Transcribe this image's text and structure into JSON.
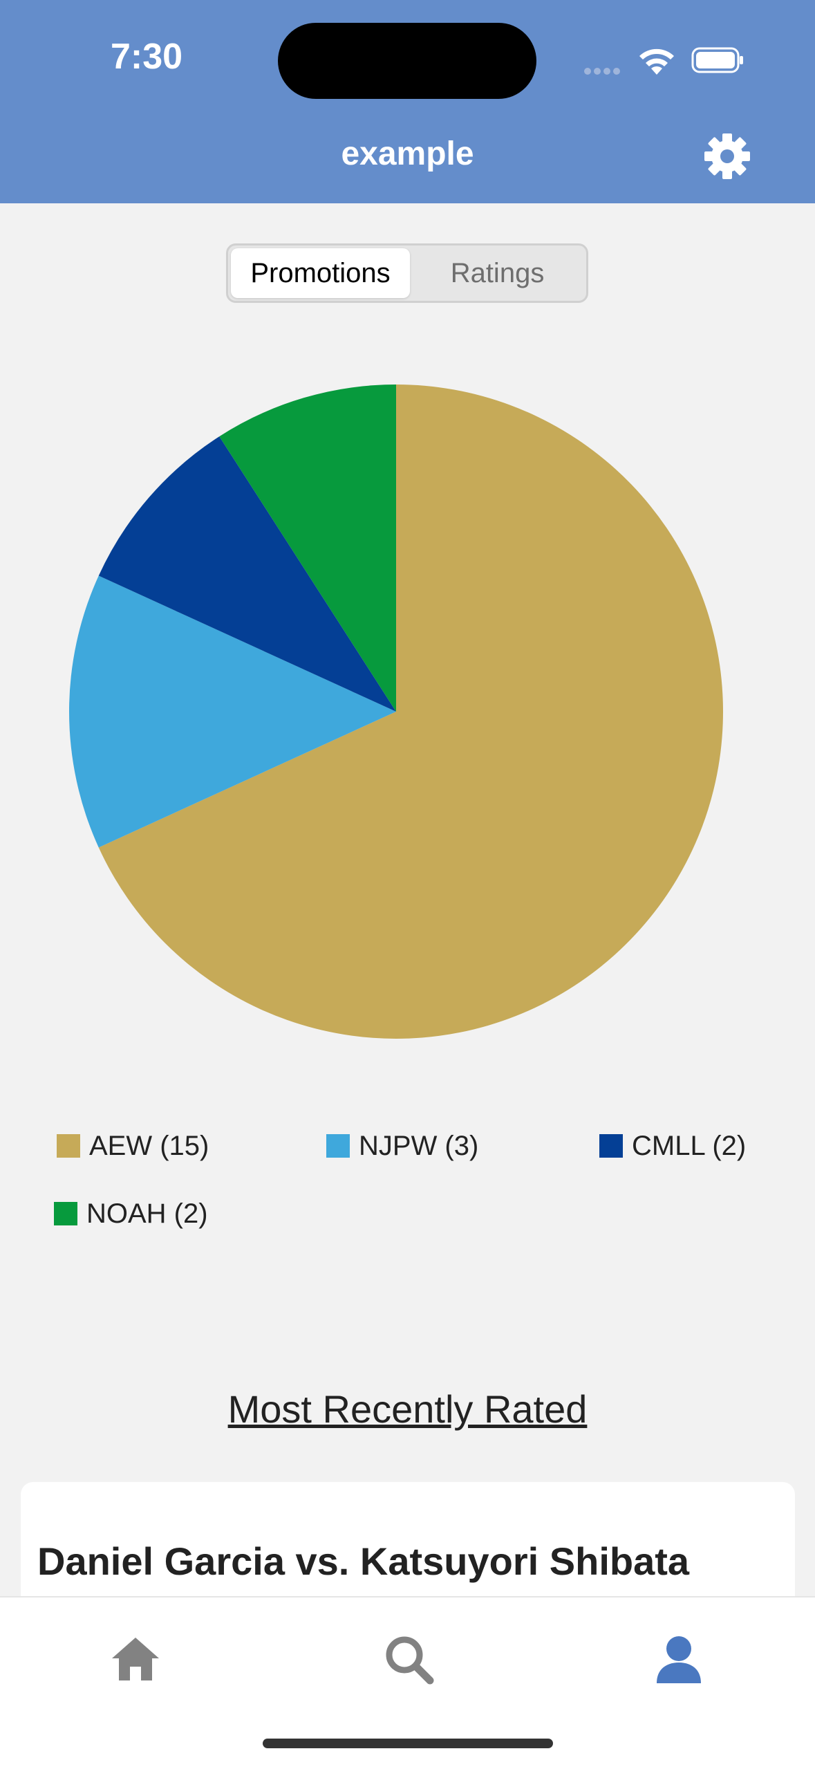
{
  "status_bar": {
    "time": "7:30"
  },
  "nav": {
    "title": "example",
    "settings_icon": "gear-icon"
  },
  "segmented": {
    "options": [
      "Promotions",
      "Ratings"
    ],
    "selected": "Promotions"
  },
  "chart_data": {
    "type": "pie",
    "categories": [
      "AEW",
      "NJPW",
      "CMLL",
      "NOAH"
    ],
    "values": [
      15,
      3,
      2,
      2
    ],
    "colors": [
      "#c6aa58",
      "#3fa8dc",
      "#043f95",
      "#079a3d"
    ],
    "legend": [
      "AEW (15)",
      "NJPW (3)",
      "CMLL (2)",
      "NOAH (2)"
    ],
    "legend_placement": "bottom"
  },
  "recent": {
    "section_title": "Most Recently Rated",
    "first_match_title": "Daniel Garcia vs. Katsuyori Shibata"
  },
  "tabbar": {
    "tabs": [
      "home-icon",
      "search-icon",
      "profile-icon"
    ],
    "active": "profile-icon"
  }
}
